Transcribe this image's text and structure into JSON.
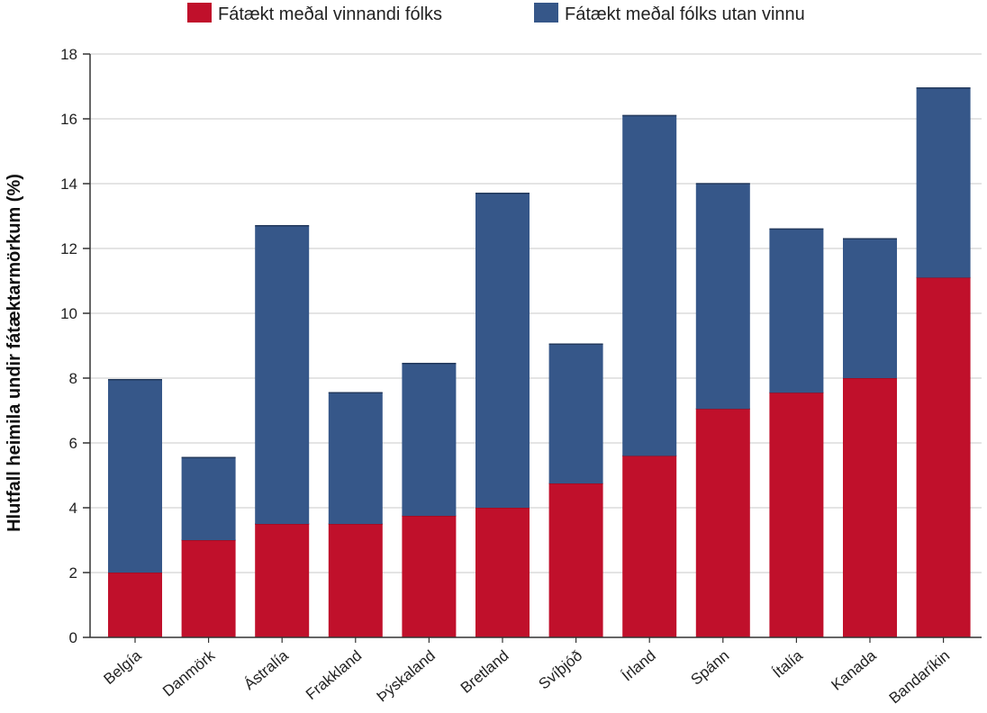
{
  "chart_data": {
    "type": "bar",
    "stacked": true,
    "ylabel": "Hlutfall heimila undir fátæktarmörkum (%)",
    "xlabel": "",
    "ylim": [
      0,
      18
    ],
    "yticks": [
      0,
      2,
      4,
      6,
      8,
      10,
      12,
      14,
      16,
      18
    ],
    "grid": true,
    "legend_position": "top",
    "categories": [
      "Belgía",
      "Danmörk",
      "Ástralía",
      "Frakkland",
      "Þýskaland",
      "Bretland",
      "Svíþjóð",
      "Írland",
      "Spánn",
      "Ítalía",
      "Kanada",
      "Bandaríkin"
    ],
    "series": [
      {
        "name": "Fátækt meðal vinnandi fólks",
        "color": "#c0102b",
        "values": [
          2.0,
          3.0,
          3.5,
          3.5,
          3.75,
          4.0,
          4.75,
          5.6,
          7.05,
          7.55,
          8.0,
          11.1
        ]
      },
      {
        "name": "Fátækt meðal fólks utan vinnu",
        "color": "#365789",
        "values": [
          5.95,
          2.55,
          9.2,
          4.05,
          4.7,
          9.7,
          4.3,
          10.5,
          6.95,
          5.05,
          4.3,
          5.85
        ]
      }
    ]
  }
}
